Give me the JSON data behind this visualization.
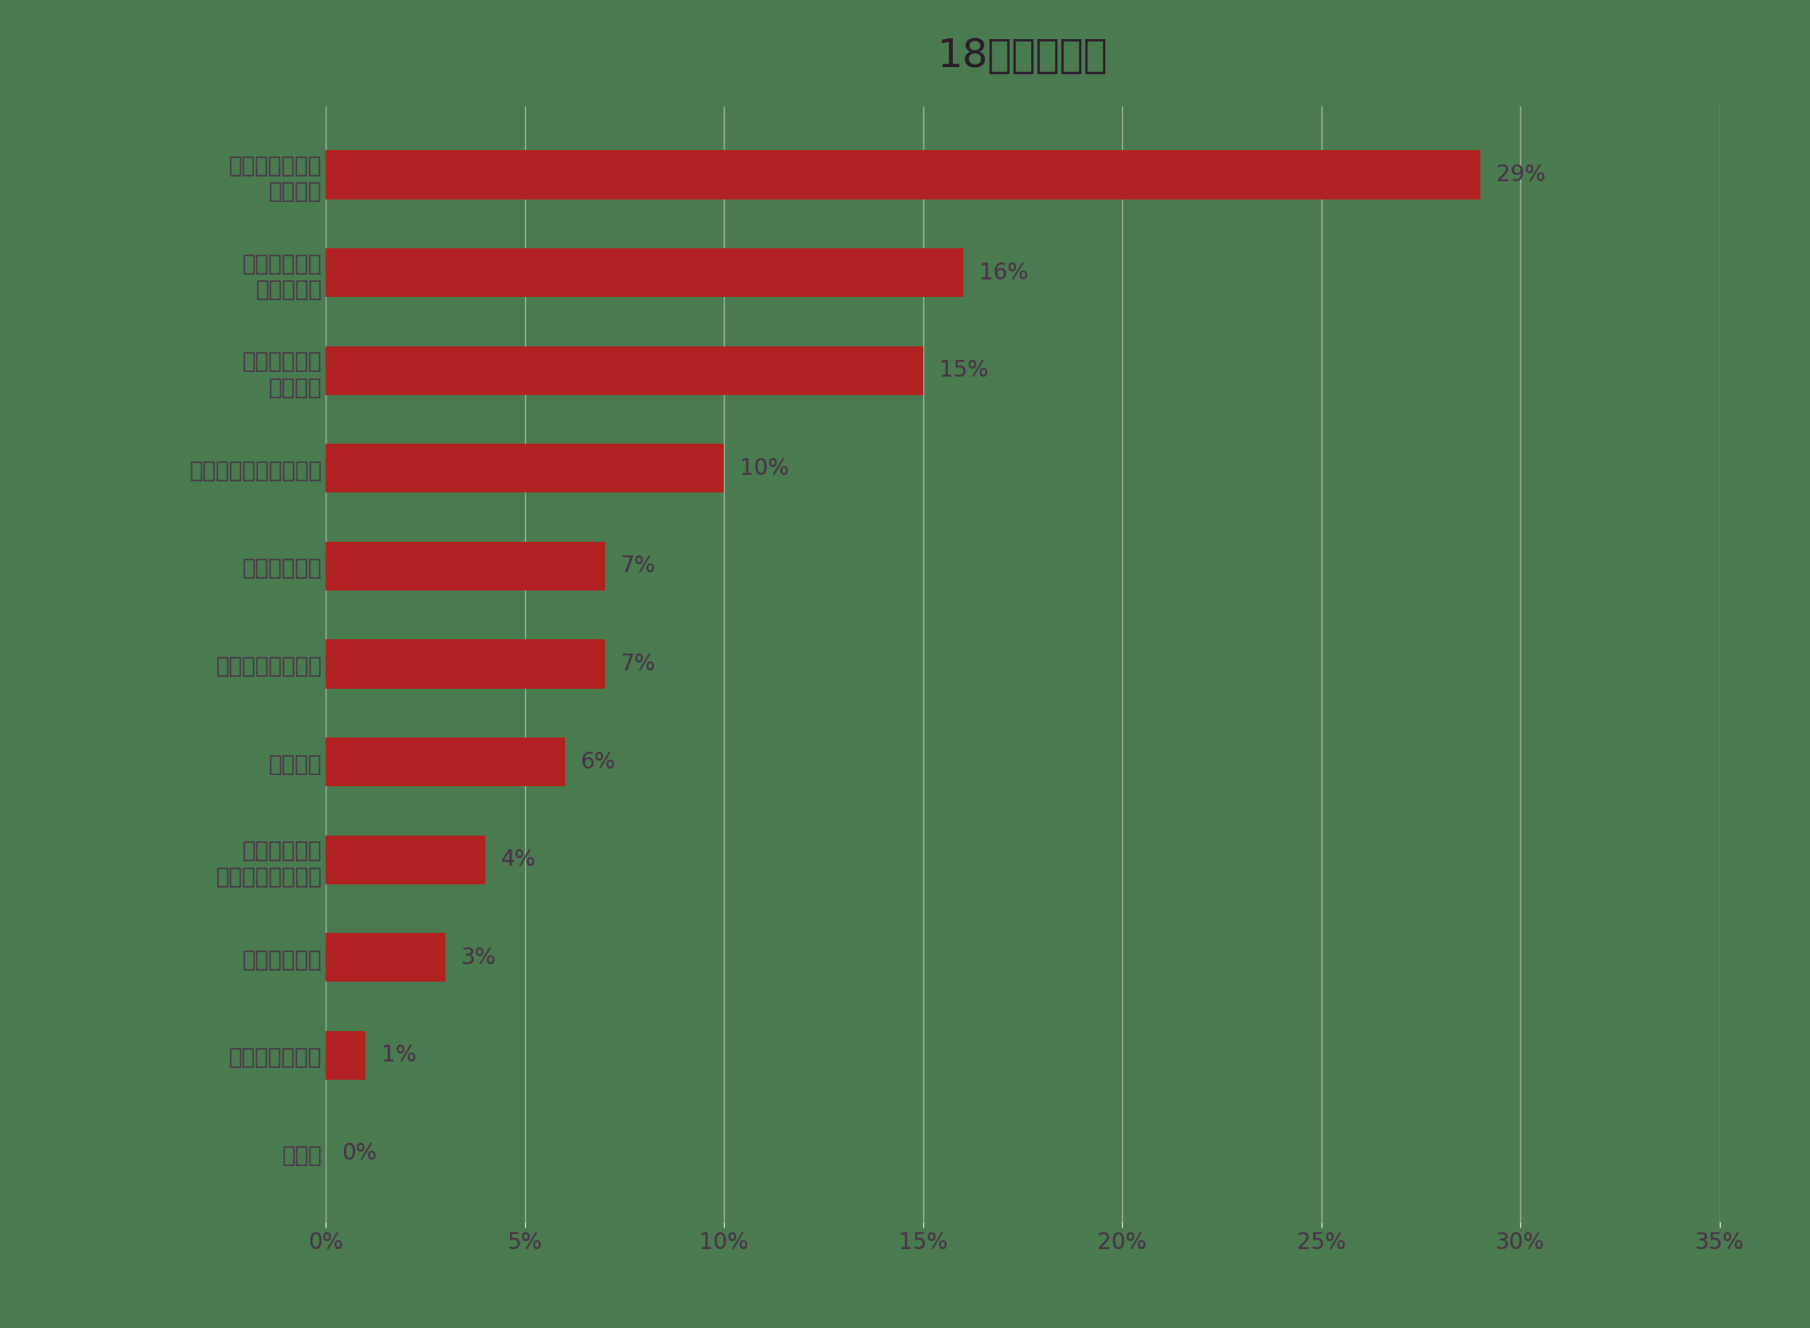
{
  "title": "18歳（高卒）",
  "categories": [
    "安定した給料を\nもらえる",
    "社会人として\n成長できる",
    "自分の能力を\n活かせる",
    "キャリアアップできる",
    "人脈を築ける",
    "社会貢献ができる",
    "特になし",
    "新しいことに\nチャレンジできる",
    "実績を残せる",
    "専門性を磨ける",
    "その他"
  ],
  "values": [
    29,
    16,
    15,
    10,
    7,
    7,
    6,
    4,
    3,
    1,
    0
  ],
  "bar_color": "#b22222",
  "background_color": "#4a7a50",
  "text_color": "#4a3048",
  "title_color": "#2a1a2a",
  "bar_label_color": "#4a3048",
  "grid_color": "#6a9a6a",
  "xlim": [
    0,
    35
  ],
  "xticks": [
    0,
    5,
    10,
    15,
    20,
    25,
    30,
    35
  ],
  "xtick_labels": [
    "0%",
    "5%",
    "10%",
    "15%",
    "20%",
    "25%",
    "30%",
    "35%"
  ],
  "title_fontsize": 36,
  "label_fontsize": 20,
  "tick_fontsize": 20,
  "value_fontsize": 20,
  "bar_height": 0.5
}
